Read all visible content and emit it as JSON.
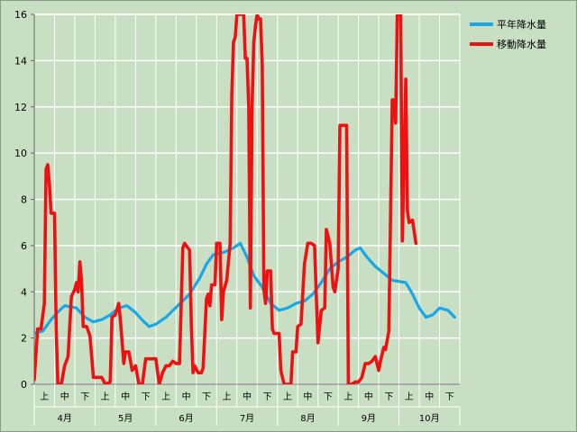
{
  "chart_data": {
    "type": "line",
    "title": "",
    "xlabel": "",
    "ylabel": "",
    "ylim": [
      0,
      16
    ],
    "yticks": [
      0,
      2,
      4,
      6,
      8,
      10,
      12,
      14,
      16
    ],
    "grid": "horizontal and vertical",
    "legend": "top-right",
    "months": [
      "4月",
      "5月",
      "6月",
      "7月",
      "8月",
      "9月",
      "10月"
    ],
    "decades": [
      "上",
      "中",
      "下"
    ],
    "x_unit": "半旬 (0–210 index across Apr–Oct)",
    "series": [
      {
        "name": "平年降水量",
        "color": "#1aa7e6",
        "points": [
          [
            0,
            2.2
          ],
          [
            5,
            2.3
          ],
          [
            10,
            2.8
          ],
          [
            15,
            3.2
          ],
          [
            18,
            3.4
          ],
          [
            25,
            3.3
          ],
          [
            30,
            2.9
          ],
          [
            35,
            2.7
          ],
          [
            40,
            2.8
          ],
          [
            45,
            3.0
          ],
          [
            50,
            3.3
          ],
          [
            55,
            3.4
          ],
          [
            60,
            3.1
          ],
          [
            65,
            2.7
          ],
          [
            68,
            2.5
          ],
          [
            72,
            2.6
          ],
          [
            78,
            2.9
          ],
          [
            85,
            3.4
          ],
          [
            92,
            3.9
          ],
          [
            98,
            4.6
          ],
          [
            102,
            5.2
          ],
          [
            106,
            5.6
          ],
          [
            112,
            5.7
          ],
          [
            118,
            5.9
          ],
          [
            122,
            6.1
          ],
          [
            126,
            5.5
          ],
          [
            130,
            4.7
          ],
          [
            135,
            4.2
          ],
          [
            140,
            3.5
          ],
          [
            145,
            3.2
          ],
          [
            150,
            3.3
          ],
          [
            155,
            3.5
          ],
          [
            160,
            3.6
          ],
          [
            165,
            3.9
          ],
          [
            170,
            4.4
          ],
          [
            175,
            5.0
          ],
          [
            180,
            5.3
          ],
          [
            185,
            5.5
          ],
          [
            190,
            5.8
          ],
          [
            193,
            5.9
          ],
          [
            197,
            5.5
          ],
          [
            202,
            5.1
          ],
          [
            207,
            4.8
          ],
          [
            212,
            4.5
          ],
          [
            220,
            4.4
          ],
          [
            224,
            3.9
          ],
          [
            228,
            3.3
          ],
          [
            232,
            2.9
          ],
          [
            236,
            3.0
          ],
          [
            240,
            3.3
          ],
          [
            245,
            3.2
          ],
          [
            249,
            2.9
          ]
        ]
      },
      {
        "name": "移動降水量",
        "color": "#ee1111",
        "points": [
          [
            0,
            0.2
          ],
          [
            2,
            2.4
          ],
          [
            4,
            2.4
          ],
          [
            6,
            3.5
          ],
          [
            7,
            9.3
          ],
          [
            8,
            9.5
          ],
          [
            9,
            8.6
          ],
          [
            10,
            7.4
          ],
          [
            12,
            7.4
          ],
          [
            13,
            2.4
          ],
          [
            14,
            0.0
          ],
          [
            16,
            0.0
          ],
          [
            18,
            0.8
          ],
          [
            20,
            1.2
          ],
          [
            22,
            3.8
          ],
          [
            24,
            4.1
          ],
          [
            25,
            4.4
          ],
          [
            26,
            4.0
          ],
          [
            27,
            5.3
          ],
          [
            28,
            4.5
          ],
          [
            29,
            2.5
          ],
          [
            31,
            2.5
          ],
          [
            33,
            2.1
          ],
          [
            35,
            0.3
          ],
          [
            40,
            0.3
          ],
          [
            42,
            0.0
          ],
          [
            45,
            0.1
          ],
          [
            46,
            2.9
          ],
          [
            48,
            3.0
          ],
          [
            50,
            3.5
          ],
          [
            51,
            2.8
          ],
          [
            53,
            0.9
          ],
          [
            54,
            1.4
          ],
          [
            56,
            1.4
          ],
          [
            58,
            0.6
          ],
          [
            60,
            0.8
          ],
          [
            62,
            0.0
          ],
          [
            64,
            0.0
          ],
          [
            66,
            1.1
          ],
          [
            68,
            1.1
          ],
          [
            72,
            1.1
          ],
          [
            74,
            0.0
          ],
          [
            76,
            0.5
          ],
          [
            78,
            0.8
          ],
          [
            80,
            0.8
          ],
          [
            82,
            1.0
          ],
          [
            84,
            0.9
          ],
          [
            86,
            0.9
          ],
          [
            88,
            5.9
          ],
          [
            89,
            6.1
          ],
          [
            92,
            5.8
          ],
          [
            93,
            2.6
          ],
          [
            94,
            0.5
          ],
          [
            95,
            0.8
          ],
          [
            97,
            0.5
          ],
          [
            99,
            0.5
          ],
          [
            100,
            0.7
          ],
          [
            102,
            3.7
          ],
          [
            103,
            3.9
          ],
          [
            104,
            3.4
          ],
          [
            105,
            4.3
          ],
          [
            107,
            4.3
          ],
          [
            108,
            6.1
          ],
          [
            110,
            6.1
          ],
          [
            111,
            2.8
          ],
          [
            112,
            4.0
          ],
          [
            114,
            4.5
          ],
          [
            116,
            6.1
          ],
          [
            117,
            12.5
          ],
          [
            118,
            14.8
          ],
          [
            119,
            15.0
          ],
          [
            120,
            16.0
          ],
          [
            122,
            16.0
          ],
          [
            124,
            16.0
          ],
          [
            125,
            14.1
          ],
          [
            126,
            14.1
          ],
          [
            127,
            12.0
          ],
          [
            128,
            3.3
          ],
          [
            129,
            12.0
          ],
          [
            130,
            14.8
          ],
          [
            131,
            15.5
          ],
          [
            132,
            16.0
          ],
          [
            133,
            15.8
          ],
          [
            134,
            15.8
          ],
          [
            135,
            13.8
          ],
          [
            136,
            4.1
          ],
          [
            137,
            3.5
          ],
          [
            138,
            4.9
          ],
          [
            140,
            4.9
          ],
          [
            141,
            2.4
          ],
          [
            142,
            2.2
          ],
          [
            143,
            2.2
          ],
          [
            145,
            2.2
          ],
          [
            146,
            0.6
          ],
          [
            148,
            0.0
          ],
          [
            150,
            0.0
          ],
          [
            152,
            0.0
          ],
          [
            153,
            1.4
          ],
          [
            155,
            1.4
          ],
          [
            156,
            2.5
          ],
          [
            158,
            2.6
          ],
          [
            160,
            5.2
          ],
          [
            162,
            6.1
          ],
          [
            164,
            6.1
          ],
          [
            166,
            6.0
          ],
          [
            168,
            1.8
          ],
          [
            170,
            3.2
          ],
          [
            172,
            3.3
          ],
          [
            173,
            6.7
          ],
          [
            175,
            6.1
          ],
          [
            177,
            4.2
          ],
          [
            178,
            4.0
          ],
          [
            180,
            5.0
          ],
          [
            181,
            11.2
          ],
          [
            183,
            11.2
          ],
          [
            185,
            11.2
          ],
          [
            186,
            0.0
          ],
          [
            188,
            0.0
          ],
          [
            190,
            0.1
          ],
          [
            192,
            0.1
          ],
          [
            194,
            0.3
          ],
          [
            196,
            0.9
          ],
          [
            198,
            0.9
          ],
          [
            200,
            1.0
          ],
          [
            202,
            1.2
          ],
          [
            204,
            0.6
          ],
          [
            205,
            1.0
          ],
          [
            207,
            1.6
          ],
          [
            208,
            1.5
          ],
          [
            210,
            2.3
          ],
          [
            212,
            12.3
          ],
          [
            213,
            12.3
          ],
          [
            214,
            11.3
          ],
          [
            215,
            16.0
          ],
          [
            216,
            16.0
          ],
          [
            217,
            16.0
          ],
          [
            218,
            6.2
          ],
          [
            220,
            13.2
          ],
          [
            221,
            7.5
          ],
          [
            222,
            7.0
          ],
          [
            224,
            7.1
          ],
          [
            226,
            6.1
          ]
        ]
      }
    ]
  }
}
